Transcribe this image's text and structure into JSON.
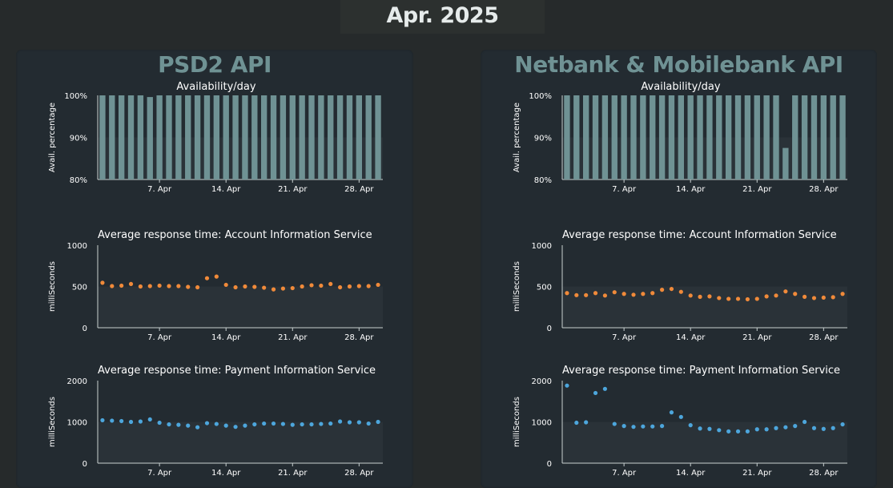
{
  "header": {
    "month": "Apr. 2025"
  },
  "palette": {
    "background": "#262a2b",
    "panel": "#232b31",
    "title": "#6f9294",
    "availability_bar": "#6f9294",
    "ais_points": "#f08a3a",
    "pis_points": "#4da6dc"
  },
  "panels": [
    {
      "title": "PSD2 API",
      "charts": [
        {
          "type": "bar",
          "title": "Availability/day",
          "ylabel": "Avail. percentage",
          "ylim": [
            80,
            100
          ],
          "yticks": [
            "80%",
            "90%",
            "100%"
          ],
          "xlim": [
            1,
            30
          ],
          "xticks": [
            {
              "day": 7,
              "label": "7. Apr"
            },
            {
              "day": 14,
              "label": "14. Apr"
            },
            {
              "day": 21,
              "label": "21. Apr"
            },
            {
              "day": 28,
              "label": "28. Apr"
            }
          ],
          "x": [
            1,
            2,
            3,
            4,
            5,
            6,
            7,
            8,
            9,
            10,
            11,
            12,
            13,
            14,
            15,
            16,
            17,
            18,
            19,
            20,
            21,
            22,
            23,
            24,
            25,
            26,
            27,
            28,
            29,
            30
          ],
          "values": [
            100,
            100,
            100,
            100,
            100,
            99.6,
            100,
            100,
            100,
            100,
            100,
            100,
            100,
            100,
            100,
            100,
            100,
            100,
            100,
            100,
            100,
            100,
            100,
            100,
            100,
            100,
            100,
            100,
            100,
            100
          ]
        },
        {
          "type": "scatter",
          "title": "Average response time: Account Information Service",
          "ylabel": "milliSeconds",
          "ylim": [
            0,
            1000
          ],
          "yticks": [
            "0",
            "500",
            "1000"
          ],
          "xlim": [
            1,
            30
          ],
          "xticks": [
            {
              "day": 7,
              "label": "7. Apr"
            },
            {
              "day": 14,
              "label": "14. Apr"
            },
            {
              "day": 21,
              "label": "21. Apr"
            },
            {
              "day": 28,
              "label": "28. Apr"
            }
          ],
          "x": [
            1,
            2,
            3,
            4,
            5,
            6,
            7,
            8,
            9,
            10,
            11,
            12,
            13,
            14,
            15,
            16,
            17,
            18,
            19,
            20,
            21,
            22,
            23,
            24,
            25,
            26,
            27,
            28,
            29,
            30
          ],
          "values": [
            545,
            505,
            510,
            530,
            500,
            505,
            510,
            505,
            505,
            495,
            490,
            600,
            620,
            520,
            490,
            500,
            495,
            485,
            465,
            475,
            480,
            500,
            515,
            510,
            530,
            490,
            500,
            505,
            505,
            520
          ]
        },
        {
          "type": "scatter",
          "title": "Average response time: Payment Information Service",
          "ylabel": "milliSeconds",
          "ylim": [
            0,
            2000
          ],
          "yticks": [
            "0",
            "1000",
            "2000"
          ],
          "xlim": [
            1,
            30
          ],
          "xticks": [
            {
              "day": 7,
              "label": "7. Apr"
            },
            {
              "day": 14,
              "label": "14. Apr"
            },
            {
              "day": 21,
              "label": "21. Apr"
            },
            {
              "day": 28,
              "label": "28. Apr"
            }
          ],
          "x": [
            1,
            2,
            3,
            4,
            5,
            6,
            7,
            8,
            9,
            10,
            11,
            12,
            13,
            14,
            15,
            16,
            17,
            18,
            19,
            20,
            21,
            22,
            23,
            24,
            25,
            26,
            27,
            28,
            29,
            30
          ],
          "values": [
            1040,
            1030,
            1020,
            1000,
            1010,
            1060,
            980,
            940,
            930,
            910,
            870,
            970,
            950,
            910,
            880,
            910,
            940,
            960,
            960,
            950,
            930,
            940,
            940,
            950,
            960,
            1010,
            990,
            990,
            960,
            1000
          ]
        }
      ]
    },
    {
      "title": "Netbank & Mobilebank API",
      "charts": [
        {
          "type": "bar",
          "title": "Availability/day",
          "ylabel": "Avail. percentage",
          "ylim": [
            80,
            100
          ],
          "yticks": [
            "80%",
            "90%",
            "100%"
          ],
          "xlim": [
            1,
            30
          ],
          "xticks": [
            {
              "day": 7,
              "label": "7. Apr"
            },
            {
              "day": 14,
              "label": "14. Apr"
            },
            {
              "day": 21,
              "label": "21. Apr"
            },
            {
              "day": 28,
              "label": "28. Apr"
            }
          ],
          "x": [
            1,
            2,
            3,
            4,
            5,
            6,
            7,
            8,
            9,
            10,
            11,
            12,
            13,
            14,
            15,
            16,
            17,
            18,
            19,
            20,
            21,
            22,
            23,
            24,
            25,
            26,
            27,
            28,
            29,
            30
          ],
          "values": [
            100,
            100,
            100,
            100,
            100,
            100,
            100,
            100,
            100,
            100,
            100,
            100,
            100,
            100,
            100,
            100,
            100,
            100,
            100,
            100,
            100,
            100,
            100,
            87.5,
            100,
            100,
            100,
            100,
            100,
            100
          ]
        },
        {
          "type": "scatter",
          "title": "Average response time: Account Information Service",
          "ylabel": "milliSeconds",
          "ylim": [
            0,
            1000
          ],
          "yticks": [
            "0",
            "500",
            "1000"
          ],
          "xlim": [
            1,
            30
          ],
          "xticks": [
            {
              "day": 7,
              "label": "7. Apr"
            },
            {
              "day": 14,
              "label": "14. Apr"
            },
            {
              "day": 21,
              "label": "21. Apr"
            },
            {
              "day": 28,
              "label": "28. Apr"
            }
          ],
          "x": [
            1,
            2,
            3,
            4,
            5,
            6,
            7,
            8,
            9,
            10,
            11,
            12,
            13,
            14,
            15,
            16,
            17,
            18,
            19,
            20,
            21,
            22,
            23,
            24,
            25,
            26,
            27,
            28,
            29,
            30
          ],
          "values": [
            420,
            395,
            395,
            420,
            390,
            430,
            410,
            400,
            410,
            420,
            460,
            470,
            435,
            390,
            375,
            380,
            360,
            350,
            350,
            345,
            350,
            380,
            390,
            440,
            410,
            375,
            360,
            365,
            370,
            410
          ]
        },
        {
          "type": "scatter",
          "title": "Average response time: Payment Information Service",
          "ylabel": "milliSeconds",
          "ylim": [
            0,
            2000
          ],
          "yticks": [
            "0",
            "1000",
            "2000"
          ],
          "xlim": [
            1,
            30
          ],
          "xticks": [
            {
              "day": 7,
              "label": "7. Apr"
            },
            {
              "day": 14,
              "label": "14. Apr"
            },
            {
              "day": 21,
              "label": "21. Apr"
            },
            {
              "day": 28,
              "label": "28. Apr"
            }
          ],
          "x": [
            1,
            2,
            3,
            4,
            5,
            6,
            7,
            8,
            9,
            10,
            11,
            12,
            13,
            14,
            15,
            16,
            17,
            18,
            19,
            20,
            21,
            22,
            23,
            24,
            25,
            26,
            27,
            28,
            29,
            30
          ],
          "values": [
            1880,
            980,
            990,
            1700,
            1800,
            950,
            900,
            880,
            890,
            890,
            900,
            1230,
            1120,
            920,
            840,
            830,
            800,
            770,
            770,
            770,
            820,
            820,
            850,
            870,
            900,
            1000,
            850,
            830,
            850,
            940
          ]
        }
      ]
    }
  ]
}
